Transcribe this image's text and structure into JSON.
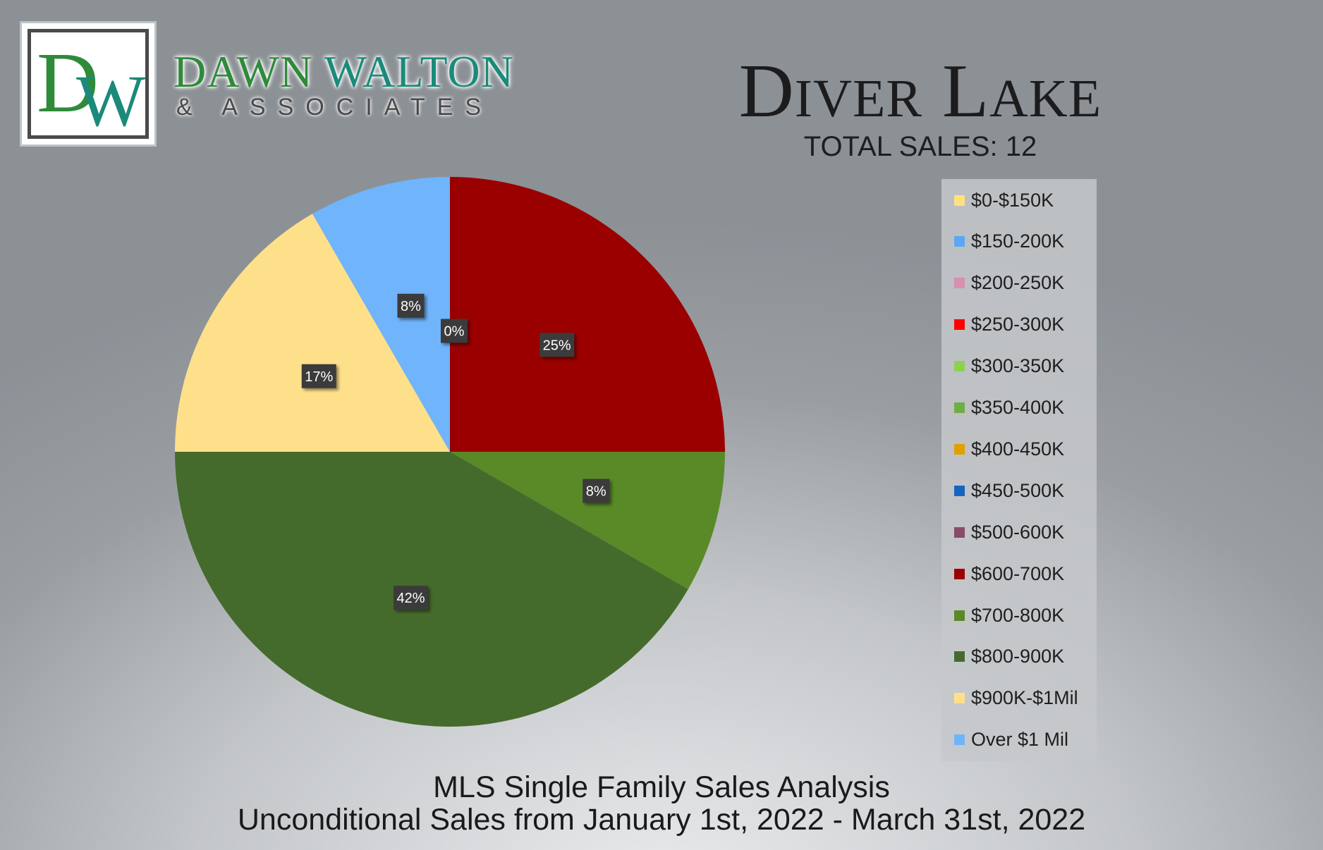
{
  "brand": {
    "monogram": "DW",
    "name_first": "DAWN",
    "name_second": "WALTON",
    "subtitle": "& ASSOCIATES",
    "colors": {
      "green": "#2f8a3a",
      "teal": "#1b8a7a"
    }
  },
  "header": {
    "title": "Diver Lake",
    "total_sales": "TOTAL SALES: 12"
  },
  "footer": {
    "line1": "MLS Single Family Sales Analysis",
    "line2": "Unconditional Sales from January 1st, 2022 - March 31st, 2022"
  },
  "chart_data": {
    "type": "pie",
    "title": "",
    "start_angle_deg": 0,
    "direction": "clockwise",
    "legend": "right",
    "categories": [
      "$0-$150K",
      "$150-200K",
      "$200-250K",
      "$250-300K",
      "$300-350K",
      "$350-400K",
      "$400-450K",
      "$450-500K",
      "$500-600K",
      "$600-700K",
      "$700-800K",
      "$800-900K",
      "$900K-$1Mil",
      "Over $1 Mil"
    ],
    "values": [
      0,
      0,
      0,
      0,
      0,
      0,
      0,
      0,
      0,
      3,
      1,
      5,
      2,
      1
    ],
    "colors": [
      "#ffe27f",
      "#5aa8f5",
      "#d88fb0",
      "#ff0000",
      "#8fd14f",
      "#6fae45",
      "#e0a100",
      "#1565c0",
      "#8a4a6a",
      "#9a0000",
      "#5a8a27",
      "#456b2c",
      "#ffe08a",
      "#70b4fb"
    ],
    "data_labels": [
      "0%",
      "",
      "",
      "",
      "",
      "",
      "",
      "",
      "",
      "25%",
      "8%",
      "42%",
      "17%",
      "8%"
    ]
  }
}
